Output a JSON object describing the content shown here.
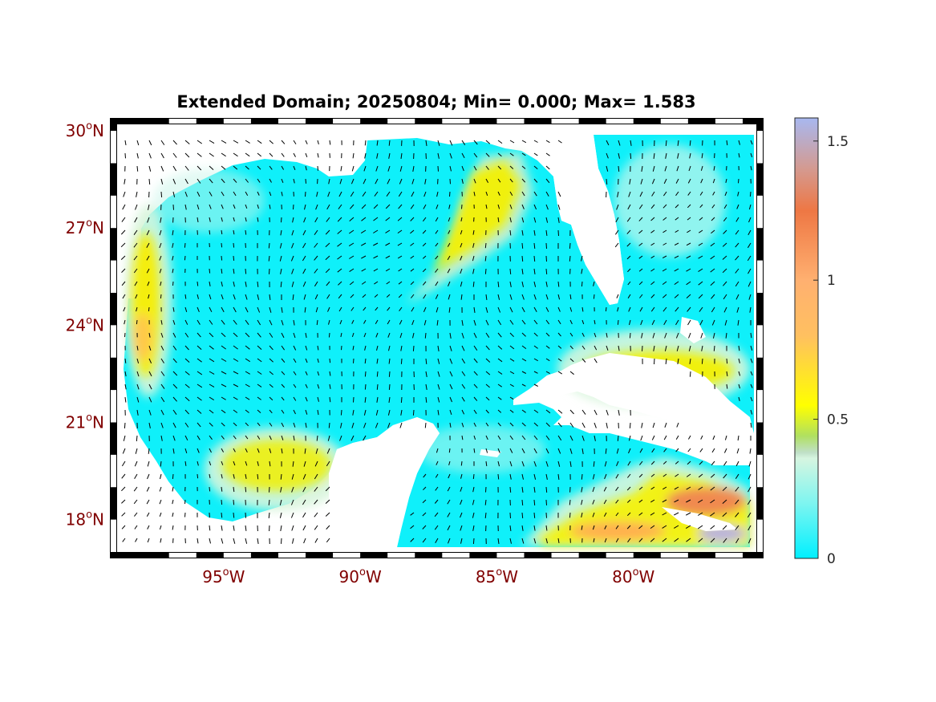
{
  "map": {
    "title": "Extended Domain; 20250804; Min= 0.000; Max= 1.583",
    "lat_ticks": [
      {
        "value": 30,
        "deg": "30",
        "hemi": "N"
      },
      {
        "value": 27,
        "deg": "27",
        "hemi": "N"
      },
      {
        "value": 24,
        "deg": "24",
        "hemi": "N"
      },
      {
        "value": 21,
        "deg": "21",
        "hemi": "N"
      },
      {
        "value": 18,
        "deg": "18",
        "hemi": "N"
      }
    ],
    "lon_ticks": [
      {
        "value": -95,
        "deg": "95",
        "hemi": "W"
      },
      {
        "value": -90,
        "deg": "90",
        "hemi": "W"
      },
      {
        "value": -85,
        "deg": "85",
        "hemi": "W"
      },
      {
        "value": -80,
        "deg": "80",
        "hemi": "W"
      }
    ],
    "extent": {
      "lon": [
        -98.9,
        -75.5
      ],
      "lat": [
        17.0,
        30.2
      ]
    },
    "colorbar": {
      "range": [
        0,
        1.583
      ],
      "ticks": [
        {
          "value": 0,
          "label": "0"
        },
        {
          "value": 0.5,
          "label": "0.5"
        },
        {
          "value": 1,
          "label": "1"
        },
        {
          "value": 1.5,
          "label": "1.5"
        }
      ],
      "stops": [
        {
          "value": 0.0,
          "color": "#00f0ff"
        },
        {
          "value": 0.2,
          "color": "#7ff5f0"
        },
        {
          "value": 0.36,
          "color": "#d6f5e0"
        },
        {
          "value": 0.38,
          "color": "#c0e0c8"
        },
        {
          "value": 0.44,
          "color": "#b0e060"
        },
        {
          "value": 0.55,
          "color": "#ffff00"
        },
        {
          "value": 0.8,
          "color": "#ffc060"
        },
        {
          "value": 1.0,
          "color": "#ffb070"
        },
        {
          "value": 1.25,
          "color": "#ee7744"
        },
        {
          "value": 1.4,
          "color": "#d49a90"
        },
        {
          "value": 1.583,
          "color": "#a8b8f0"
        }
      ]
    },
    "colors": {
      "land": "#ffffff",
      "low": "#00f0ff",
      "axis_label": "#800000",
      "arrow": "#000000"
    }
  }
}
